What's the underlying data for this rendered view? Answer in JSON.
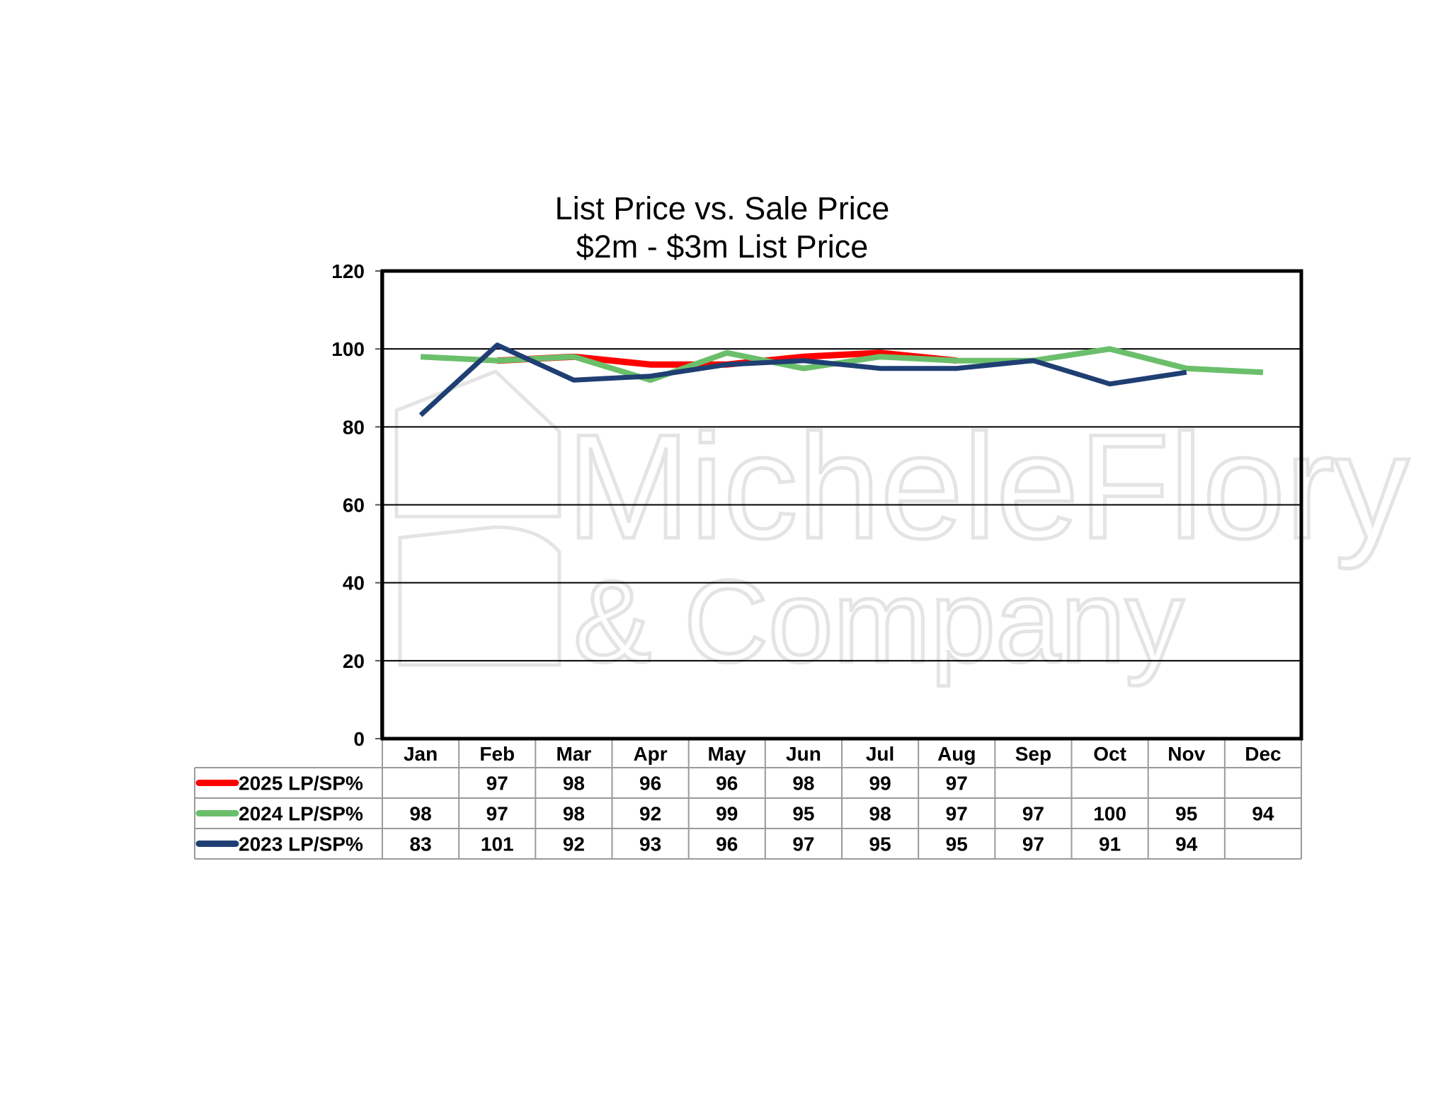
{
  "chart_data": {
    "type": "line",
    "title": "List Price vs. Sale Price",
    "subtitle": "$2m - $3m List Price",
    "categories": [
      "Jan",
      "Feb",
      "Mar",
      "Apr",
      "May",
      "Jun",
      "Jul",
      "Aug",
      "Sep",
      "Oct",
      "Nov",
      "Dec"
    ],
    "ylim": [
      0,
      120
    ],
    "yticks": [
      "0",
      "20",
      "40",
      "60",
      "80",
      "100",
      "120"
    ],
    "grid": true,
    "legend": "data-table-left",
    "series": [
      {
        "name": "2025 LP/SP%",
        "color": "#ff0000",
        "values": [
          null,
          97,
          98,
          96,
          96,
          98,
          99,
          97,
          null,
          null,
          null,
          null
        ]
      },
      {
        "name": "2024 LP/SP%",
        "color": "#6bbf6b",
        "values": [
          98,
          97,
          98,
          92,
          99,
          95,
          98,
          97,
          97,
          100,
          95,
          94
        ]
      },
      {
        "name": "2023 LP/SP%",
        "color": "#1f3f73",
        "values": [
          83,
          101,
          92,
          93,
          96,
          97,
          95,
          95,
          97,
          91,
          94,
          null
        ]
      }
    ]
  },
  "watermark": {
    "line1": "MicheleFlory",
    "line2": "& Company"
  }
}
